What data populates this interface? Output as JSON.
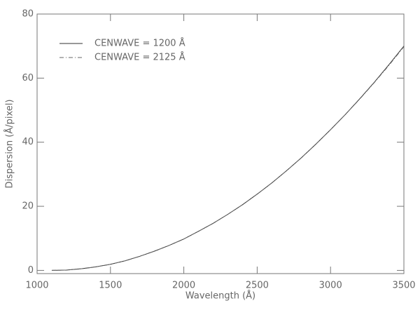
{
  "chart_data": {
    "type": "line",
    "xlabel": "Wavelength (Å)",
    "ylabel": "Dispersion (Å/pixel)",
    "x": [
      1100,
      1200,
      1300,
      1400,
      1500,
      1600,
      1700,
      1800,
      1900,
      2000,
      2100,
      2200,
      2300,
      2400,
      2500,
      2600,
      2700,
      2800,
      2900,
      3000,
      3100,
      3200,
      3300,
      3400,
      3500
    ],
    "series": [
      {
        "name": "CENWAVE = 1200 Å",
        "color": "#333333",
        "dash": "none",
        "values": [
          0,
          0.1,
          0.5,
          1.1,
          1.9,
          3.0,
          4.4,
          6.0,
          7.8,
          9.8,
          12.2,
          14.7,
          17.5,
          20.5,
          23.8,
          27.3,
          31.1,
          35.1,
          39.4,
          43.9,
          48.6,
          53.6,
          58.8,
          64.3,
          70.0
        ]
      },
      {
        "name": "CENWAVE = 2125 Å",
        "color": "#666666",
        "dash": "6 3 1 3",
        "values": [
          0,
          0.1,
          0.5,
          1.1,
          1.9,
          3.0,
          4.4,
          6.0,
          7.8,
          9.8,
          12.2,
          14.7,
          17.5,
          20.5,
          23.8,
          27.3,
          31.1,
          35.1,
          39.4,
          43.9,
          48.6,
          53.5,
          58.7,
          64.1,
          69.8
        ]
      }
    ],
    "xlim": [
      1000,
      3500
    ],
    "xticks": [
      1000,
      1500,
      2000,
      2500,
      3000,
      3500
    ],
    "ylim": [
      -1,
      80
    ],
    "yticks": [
      0,
      20,
      40,
      60,
      80
    ]
  }
}
